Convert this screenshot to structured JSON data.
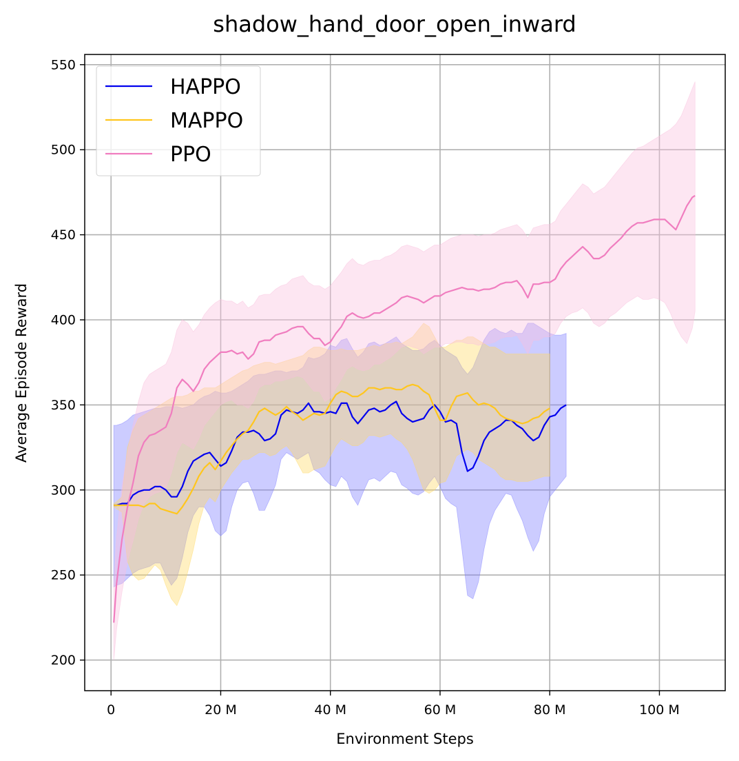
{
  "chart_data": {
    "type": "line",
    "title": "shadow_hand_door_open_inward",
    "xlabel": "Environment Steps",
    "ylabel": "Average Episode Reward",
    "xlim": [
      -4.8,
      112
    ],
    "ylim": [
      182,
      556
    ],
    "xticks": [
      0,
      20,
      40,
      60,
      80,
      100
    ],
    "xtick_labels": [
      "0",
      "20 M",
      "40 M",
      "60 M",
      "80 M",
      "100 M"
    ],
    "yticks": [
      200,
      250,
      300,
      350,
      400,
      450,
      500,
      550
    ],
    "ytick_labels": [
      "200",
      "250",
      "300",
      "350",
      "400",
      "450",
      "500",
      "550"
    ],
    "grid": true,
    "legend_position": "top-left",
    "x_unit": "M steps",
    "series": [
      {
        "name": "HAPPO",
        "color": "#0000ee",
        "fill_color": "#8080ff",
        "x": [
          0.5,
          1,
          2,
          3,
          4,
          5,
          6,
          7,
          8,
          9,
          10,
          11,
          12,
          13,
          14,
          15,
          16,
          17,
          18,
          19,
          20,
          21,
          22,
          23,
          24,
          25,
          26,
          27,
          28,
          29,
          30,
          31,
          32,
          33,
          34,
          35,
          36,
          37,
          38,
          39,
          40,
          41,
          42,
          43,
          44,
          45,
          46,
          47,
          48,
          49,
          50,
          51,
          52,
          53,
          54,
          55,
          56,
          57,
          58,
          59,
          60,
          61,
          62,
          63,
          64,
          65,
          66,
          67,
          68,
          69,
          70,
          71,
          72,
          73,
          74,
          75,
          76,
          77,
          78,
          79,
          80,
          81,
          82,
          83
        ],
        "mean": [
          291,
          291,
          292,
          292,
          297,
          299,
          300,
          300,
          302,
          302,
          300,
          296,
          296,
          302,
          311,
          317,
          319,
          321,
          322,
          318,
          314,
          316,
          323,
          331,
          334,
          334,
          335,
          333,
          329,
          330,
          333,
          344,
          347,
          346,
          345,
          347,
          351,
          346,
          346,
          345,
          346,
          345,
          351,
          351,
          343,
          339,
          343,
          347,
          348,
          346,
          347,
          350,
          352,
          345,
          342,
          340,
          341,
          342,
          347,
          350,
          346,
          340,
          341,
          339,
          322,
          311,
          313,
          320,
          329,
          334,
          336,
          338,
          341,
          341,
          338,
          336,
          332,
          329,
          331,
          338,
          343,
          344,
          348,
          350
        ],
        "lower": [
          243,
          244,
          245,
          248,
          251,
          253,
          254,
          255,
          257,
          257,
          250,
          244,
          248,
          260,
          275,
          285,
          290,
          290,
          285,
          276,
          273,
          276,
          290,
          300,
          304,
          305,
          298,
          288,
          288,
          295,
          303,
          318,
          322,
          320,
          318,
          320,
          322,
          312,
          310,
          306,
          303,
          302,
          308,
          305,
          296,
          291,
          299,
          306,
          307,
          305,
          308,
          311,
          310,
          303,
          301,
          298,
          297,
          299,
          304,
          308,
          302,
          295,
          292,
          290,
          265,
          238,
          236,
          246,
          265,
          280,
          288,
          293,
          298,
          297,
          289,
          282,
          272,
          264,
          270,
          286,
          296,
          300,
          304,
          308
        ],
        "upper": [
          338,
          338,
          339,
          341,
          344,
          345,
          346,
          347,
          348,
          348,
          349,
          349,
          349,
          348,
          349,
          350,
          353,
          355,
          356,
          358,
          357,
          357,
          358,
          360,
          362,
          364,
          367,
          368,
          368,
          369,
          370,
          370,
          369,
          370,
          370,
          372,
          378,
          377,
          378,
          380,
          385,
          384,
          388,
          389,
          383,
          378,
          381,
          386,
          387,
          385,
          386,
          388,
          390,
          386,
          384,
          382,
          382,
          383,
          386,
          388,
          385,
          382,
          380,
          378,
          372,
          368,
          372,
          380,
          388,
          393,
          395,
          393,
          392,
          394,
          392,
          392,
          398,
          398,
          396,
          394,
          392,
          391,
          391,
          392
        ]
      },
      {
        "name": "MAPPO",
        "color": "#ffc61e",
        "fill_color": "#ffd966",
        "x": [
          0.5,
          1,
          2,
          3,
          4,
          5,
          6,
          7,
          8,
          9,
          10,
          11,
          12,
          13,
          14,
          15,
          16,
          17,
          18,
          19,
          20,
          21,
          22,
          23,
          24,
          25,
          26,
          27,
          28,
          29,
          30,
          31,
          32,
          33,
          34,
          35,
          36,
          37,
          38,
          39,
          40,
          41,
          42,
          43,
          44,
          45,
          46,
          47,
          48,
          49,
          50,
          51,
          52,
          53,
          54,
          55,
          56,
          57,
          58,
          59,
          60,
          61,
          62,
          63,
          64,
          65,
          66,
          67,
          68,
          69,
          70,
          71,
          72,
          73,
          74,
          75,
          76,
          77,
          78,
          79,
          80
        ],
        "mean": [
          291,
          291,
          291,
          291,
          291,
          291,
          290,
          292,
          292,
          289,
          288,
          287,
          286,
          290,
          295,
          301,
          308,
          313,
          316,
          312,
          317,
          322,
          326,
          330,
          333,
          335,
          340,
          346,
          348,
          346,
          344,
          346,
          349,
          346,
          344,
          341,
          343,
          345,
          344,
          345,
          351,
          356,
          358,
          357,
          355,
          355,
          357,
          360,
          360,
          359,
          360,
          360,
          359,
          359,
          361,
          362,
          361,
          358,
          356,
          348,
          341,
          341,
          349,
          355,
          356,
          357,
          353,
          350,
          351,
          350,
          348,
          344,
          342,
          341,
          340,
          339,
          340,
          342,
          343,
          346,
          348
        ],
        "lower": [
          290,
          289,
          287,
          258,
          250,
          247,
          248,
          252,
          256,
          253,
          244,
          236,
          232,
          240,
          252,
          265,
          280,
          291,
          296,
          293,
          300,
          305,
          310,
          314,
          318,
          318,
          320,
          322,
          322,
          320,
          321,
          324,
          326,
          322,
          316,
          310,
          310,
          312,
          313,
          314,
          320,
          326,
          330,
          328,
          326,
          326,
          328,
          332,
          332,
          331,
          332,
          333,
          330,
          328,
          324,
          318,
          309,
          300,
          298,
          300,
          304,
          305,
          312,
          320,
          322,
          324,
          322,
          318,
          316,
          314,
          312,
          308,
          306,
          306,
          305,
          305,
          305,
          306,
          307,
          308,
          308
        ],
        "upper": [
          292,
          293,
          296,
          325,
          335,
          342,
          344,
          346,
          348,
          350,
          352,
          354,
          355,
          355,
          356,
          358,
          358,
          360,
          360,
          360,
          362,
          364,
          366,
          368,
          370,
          371,
          373,
          374,
          375,
          375,
          374,
          375,
          376,
          377,
          378,
          379,
          382,
          384,
          384,
          383,
          382,
          382,
          383,
          382,
          382,
          382,
          383,
          384,
          385,
          384,
          386,
          386,
          387,
          386,
          388,
          390,
          394,
          398,
          396,
          390,
          384,
          384,
          386,
          388,
          388,
          390,
          390,
          388,
          386,
          384,
          384,
          382,
          380,
          380,
          380,
          380,
          380,
          380,
          380,
          380,
          380
        ]
      },
      {
        "name": "PPO",
        "color": "#f07dbf",
        "fill_color": "#f9c0de",
        "x": [
          0.5,
          1,
          2,
          3,
          4,
          5,
          6,
          7,
          8,
          9,
          10,
          11,
          12,
          13,
          14,
          15,
          16,
          17,
          18,
          19,
          20,
          21,
          22,
          23,
          24,
          25,
          26,
          27,
          28,
          29,
          30,
          31,
          32,
          33,
          34,
          35,
          36,
          37,
          38,
          39,
          40,
          41,
          42,
          43,
          44,
          45,
          46,
          47,
          48,
          49,
          50,
          51,
          52,
          53,
          54,
          55,
          56,
          57,
          58,
          59,
          60,
          61,
          62,
          63,
          64,
          65,
          66,
          67,
          68,
          69,
          70,
          71,
          72,
          73,
          74,
          75,
          76,
          77,
          78,
          79,
          80,
          81,
          82,
          83,
          84,
          85,
          86,
          87,
          88,
          89,
          90,
          91,
          92,
          93,
          94,
          95,
          96,
          97,
          98,
          99,
          100,
          101,
          102,
          103,
          104,
          105,
          106,
          106.5
        ],
        "mean": [
          222,
          245,
          271,
          290,
          304,
          320,
          328,
          332,
          333,
          335,
          337,
          345,
          360,
          365,
          362,
          358,
          363,
          371,
          375,
          378,
          381,
          381,
          382,
          380,
          381,
          377,
          380,
          387,
          388,
          388,
          391,
          392,
          393,
          395,
          396,
          396,
          392,
          389,
          389,
          385,
          387,
          392,
          396,
          402,
          404,
          402,
          401,
          402,
          404,
          404,
          406,
          408,
          410,
          413,
          414,
          413,
          412,
          410,
          412,
          414,
          414,
          416,
          417,
          418,
          419,
          418,
          418,
          417,
          418,
          418,
          419,
          421,
          422,
          422,
          423,
          419,
          413,
          421,
          421,
          422,
          422,
          424,
          430,
          434,
          437,
          440,
          443,
          440,
          436,
          436,
          438,
          442,
          445,
          448,
          452,
          455,
          457,
          457,
          458,
          459,
          459,
          459,
          456,
          453,
          460,
          467,
          472,
          473
        ],
        "lower": [
          200,
          218,
          240,
          258,
          270,
          283,
          292,
          296,
          298,
          299,
          301,
          310,
          322,
          328,
          326,
          324,
          330,
          338,
          342,
          346,
          350,
          352,
          353,
          350,
          350,
          348,
          352,
          360,
          362,
          362,
          364,
          364,
          365,
          366,
          367,
          366,
          362,
          358,
          358,
          352,
          354,
          360,
          365,
          371,
          373,
          371,
          370,
          371,
          374,
          374,
          376,
          378,
          381,
          384,
          385,
          384,
          383,
          380,
          382,
          384,
          384,
          386,
          386,
          387,
          387,
          386,
          386,
          385,
          386,
          386,
          387,
          389,
          390,
          390,
          391,
          386,
          380,
          388,
          388,
          390,
          390,
          392,
          398,
          402,
          404,
          405,
          407,
          404,
          398,
          396,
          398,
          402,
          404,
          407,
          410,
          412,
          414,
          412,
          412,
          413,
          412,
          410,
          404,
          396,
          390,
          386,
          395,
          405
        ],
        "upper": [
          244,
          272,
          302,
          322,
          338,
          352,
          363,
          368,
          370,
          372,
          374,
          381,
          394,
          400,
          398,
          393,
          397,
          403,
          407,
          410,
          412,
          411,
          411,
          409,
          411,
          407,
          409,
          414,
          415,
          415,
          418,
          420,
          421,
          424,
          425,
          426,
          422,
          420,
          420,
          418,
          420,
          424,
          428,
          433,
          436,
          433,
          432,
          434,
          435,
          435,
          437,
          438,
          440,
          443,
          444,
          443,
          442,
          440,
          442,
          444,
          444,
          446,
          448,
          449,
          450,
          450,
          450,
          449,
          450,
          450,
          451,
          453,
          454,
          455,
          456,
          453,
          448,
          454,
          455,
          456,
          456,
          458,
          464,
          468,
          472,
          476,
          480,
          478,
          474,
          476,
          478,
          482,
          486,
          490,
          494,
          498,
          501,
          502,
          504,
          506,
          508,
          510,
          512,
          515,
          520,
          528,
          536,
          540
        ]
      }
    ]
  }
}
